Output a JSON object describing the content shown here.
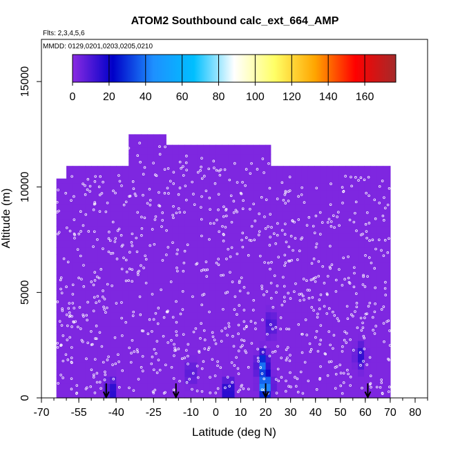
{
  "chart_data": {
    "type": "heatmap",
    "title": "ATOM2 Southbound calc_ext_664_AMP",
    "subtitle_flights": "Flts: 2,3,4,5,6",
    "subtitle_dates": "MMDD: 0129,0201,0203,0205,0210",
    "xlabel": "Latitude (deg N)",
    "ylabel": "Altitude (m)",
    "xlim": [
      -70,
      85
    ],
    "ylim": [
      0,
      17000
    ],
    "x_ticks": [
      -70,
      -55,
      -40,
      -25,
      -10,
      0,
      10,
      20,
      30,
      40,
      50,
      60,
      70,
      80
    ],
    "x_tick_labels": [
      "-70",
      "-55",
      "-40",
      "-25",
      "-10",
      "0",
      "10",
      "20",
      "30",
      "40",
      "50",
      "60",
      "70",
      "80"
    ],
    "y_ticks": [
      0,
      5000,
      10000,
      15000
    ],
    "y_tick_labels": [
      "0",
      "5000",
      "10000",
      "15000"
    ],
    "colorbar": {
      "range": [
        0,
        177
      ],
      "ticks": [
        0,
        20,
        40,
        60,
        80,
        100,
        120,
        140,
        160
      ],
      "tick_labels": [
        "0",
        "20",
        "40",
        "60",
        "80",
        "100",
        "120",
        "140",
        "160"
      ],
      "colors": [
        "#8a2be2",
        "#0000c8",
        "#1e90ff",
        "#00bfff",
        "#ffffff",
        "#ffff66",
        "#ffa500",
        "#ff0000",
        "#a52a2a"
      ]
    },
    "background_value": 2,
    "coverage_lat_ranges": [
      [
        -64,
        -60
      ],
      [
        -60,
        -35
      ],
      [
        -35,
        -20
      ],
      [
        -20,
        10
      ],
      [
        10,
        22
      ],
      [
        22,
        70
      ]
    ],
    "coverage_top_altitudes": [
      10400,
      11000,
      12500,
      12000,
      12000,
      11000
    ],
    "hotspots": [
      {
        "lat": 20,
        "alt": 600,
        "value": 60
      },
      {
        "lat": 19,
        "alt": 1500,
        "value": 40
      },
      {
        "lat": 58,
        "alt": 2000,
        "value": 15
      },
      {
        "lat": 22,
        "alt": 3500,
        "value": 12
      },
      {
        "lat": -42,
        "alt": 300,
        "value": 18
      },
      {
        "lat": 5,
        "alt": 300,
        "value": 22
      },
      {
        "lat": -10,
        "alt": 1200,
        "value": 10
      }
    ],
    "arrow_latitudes": [
      -44,
      -16,
      20,
      61
    ]
  }
}
